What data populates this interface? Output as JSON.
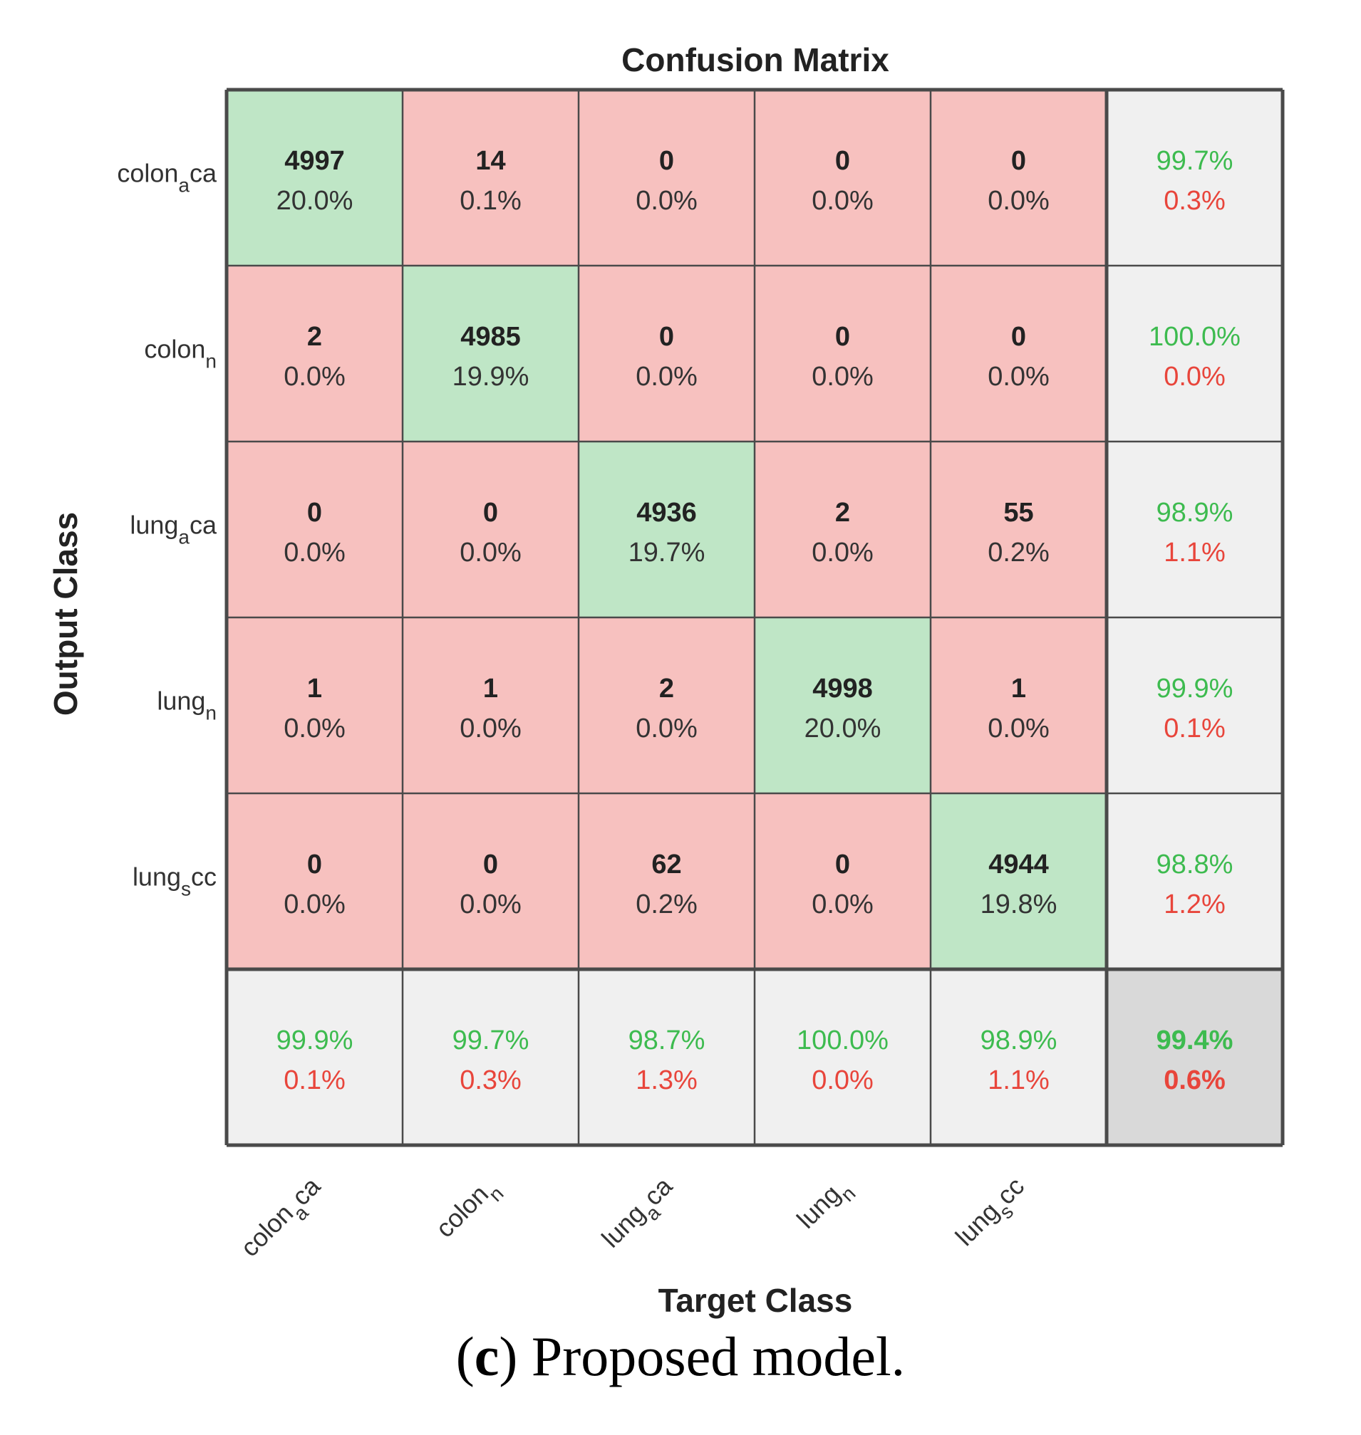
{
  "chart_data": {
    "type": "heatmap",
    "title": "Confusion Matrix",
    "xlabel": "Target Class",
    "ylabel": "Output Class",
    "classes": [
      {
        "base": "colon",
        "sub": "a",
        "suffix": "ca"
      },
      {
        "base": "colon",
        "sub": "n",
        "suffix": ""
      },
      {
        "base": "lung",
        "sub": "a",
        "suffix": "ca"
      },
      {
        "base": "lung",
        "sub": "n",
        "suffix": ""
      },
      {
        "base": "lung",
        "sub": "s",
        "suffix": "cc"
      }
    ],
    "counts": [
      [
        4997,
        14,
        0,
        0,
        0
      ],
      [
        2,
        4985,
        0,
        0,
        0
      ],
      [
        0,
        0,
        4936,
        2,
        55
      ],
      [
        1,
        1,
        2,
        4998,
        1
      ],
      [
        0,
        0,
        62,
        0,
        4944
      ]
    ],
    "percents": [
      [
        "20.0%",
        "0.1%",
        "0.0%",
        "0.0%",
        "0.0%"
      ],
      [
        "0.0%",
        "19.9%",
        "0.0%",
        "0.0%",
        "0.0%"
      ],
      [
        "0.0%",
        "0.0%",
        "19.7%",
        "0.0%",
        "0.2%"
      ],
      [
        "0.0%",
        "0.0%",
        "0.0%",
        "20.0%",
        "0.0%"
      ],
      [
        "0.0%",
        "0.0%",
        "0.2%",
        "0.0%",
        "19.8%"
      ]
    ],
    "row_summary": [
      {
        "correct": "99.7%",
        "error": "0.3%"
      },
      {
        "correct": "100.0%",
        "error": "0.0%"
      },
      {
        "correct": "98.9%",
        "error": "1.1%"
      },
      {
        "correct": "99.9%",
        "error": "0.1%"
      },
      {
        "correct": "98.8%",
        "error": "1.2%"
      }
    ],
    "col_summary": [
      {
        "correct": "99.9%",
        "error": "0.1%"
      },
      {
        "correct": "99.7%",
        "error": "0.3%"
      },
      {
        "correct": "98.7%",
        "error": "1.3%"
      },
      {
        "correct": "100.0%",
        "error": "0.0%"
      },
      {
        "correct": "98.9%",
        "error": "1.1%"
      }
    ],
    "overall": {
      "correct": "99.4%",
      "error": "0.6%"
    }
  },
  "colors": {
    "correct_cell": "#bfe6c6",
    "error_cell": "#f7c1bf",
    "summary_cell": "#f0f0f0",
    "overall_cell": "#d9d9d9",
    "correct_text": "#3dbb4f",
    "error_text": "#e8453b",
    "grid_line": "#4a4a4a"
  },
  "caption": {
    "letter": "c",
    "open": "(",
    "close": ")",
    "text": " Proposed model."
  }
}
